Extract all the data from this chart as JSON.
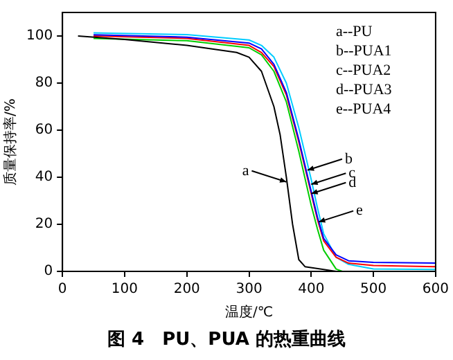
{
  "chart_data": {
    "type": "line",
    "title": "图 4　PU、PUA 的热重曲线",
    "xlabel": "温度/℃",
    "ylabel": "质量保持率/%",
    "xlim": [
      0,
      600
    ],
    "xticks": [
      0,
      100,
      200,
      300,
      400,
      500,
      600
    ],
    "ylim": [
      0,
      110
    ],
    "yticks": [
      0,
      20,
      40,
      60,
      80,
      100
    ],
    "grid": false,
    "legend": false,
    "marker": "none",
    "line_style": "solid",
    "series": [
      {
        "color": "#000000",
        "x": [
          25,
          100,
          200,
          280,
          300,
          320,
          340,
          350,
          360,
          370,
          380,
          390,
          420,
          440
        ],
        "values": [
          100,
          98.5,
          96,
          93,
          91,
          85,
          70,
          58,
          40,
          20,
          5,
          2,
          0.8,
          0
        ]
      },
      {
        "color": "#0000ff",
        "x": [
          50,
          200,
          300,
          320,
          340,
          360,
          380,
          400,
          410,
          420,
          440,
          460,
          500,
          600
        ],
        "values": [
          100.5,
          99.5,
          97,
          94.5,
          88,
          76,
          56,
          34,
          23,
          14,
          7,
          4.5,
          3.8,
          3.5
        ]
      },
      {
        "color": "#ff0000",
        "x": [
          50,
          200,
          300,
          320,
          340,
          360,
          380,
          400,
          410,
          420,
          440,
          460,
          500,
          600
        ],
        "values": [
          100,
          99,
          96,
          93,
          87,
          75,
          55,
          33,
          22,
          13,
          6,
          3.5,
          2.5,
          2
        ]
      },
      {
        "color": "#00cc00",
        "x": [
          50,
          200,
          300,
          320,
          340,
          360,
          380,
          400,
          410,
          420,
          440,
          450
        ],
        "values": [
          99,
          98,
          95,
          92,
          85,
          72,
          51,
          28,
          18,
          9,
          1,
          0
        ]
      },
      {
        "color": "#00ccff",
        "x": [
          50,
          200,
          300,
          320,
          340,
          360,
          380,
          400,
          410,
          420,
          440,
          460,
          500,
          600
        ],
        "values": [
          101.3,
          100.6,
          98.3,
          96,
          91,
          80,
          61,
          39,
          27,
          16,
          6,
          3,
          1,
          0.8
        ]
      }
    ],
    "annotations": [
      "a--PU",
      "b--PUA1",
      "c--PUA2",
      "d--PUA3",
      "e--PUA4",
      {
        "text": "a",
        "x": 360,
        "y": 38
      },
      {
        "text": "b",
        "x": 394,
        "y": 43
      },
      {
        "text": "c",
        "x": 400,
        "y": 37
      },
      {
        "text": "d",
        "x": 400,
        "y": 33
      },
      {
        "text": "e",
        "x": 412,
        "y": 21
      }
    ]
  }
}
